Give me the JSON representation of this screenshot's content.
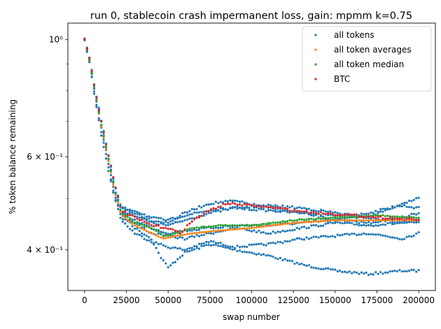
{
  "chart_data": {
    "type": "scatter",
    "title": "run 0, stablecoin crash impermanent loss, gain: mpmm k=0.75",
    "xlabel": "swap number",
    "ylabel": "% token balance remaining",
    "xlim": [
      -10000,
      210000
    ],
    "ylim": [
      0.335,
      1.075
    ],
    "yscale": "log",
    "xticks": [
      0,
      25000,
      50000,
      75000,
      100000,
      125000,
      150000,
      175000,
      200000
    ],
    "xtick_labels": [
      "0",
      "25000",
      "50000",
      "75000",
      "100000",
      "125000",
      "150000",
      "175000",
      "200000"
    ],
    "yticks_major": [
      0.4,
      0.6,
      1.0
    ],
    "ytick_labels": [
      "4 × 10⁻¹",
      "6 × 10⁻¹",
      "10⁰"
    ],
    "yticks_minor": [
      0.5,
      0.7,
      0.8,
      0.9
    ],
    "legend_position": "top-right",
    "legend": [
      "all tokens",
      "all token averages",
      "all token median",
      "BTC"
    ],
    "colors": {
      "all tokens": "#1f77b4",
      "all token averages": "#ff7f0e",
      "all token median": "#2ca02c",
      "BTC": "#d62728"
    },
    "series": [
      {
        "name": "all tokens",
        "group": "all tokens",
        "x": [
          0,
          3000,
          6000,
          10000,
          14000,
          18000,
          22000,
          30000,
          40000,
          45000,
          50000,
          60000,
          75000,
          90000,
          110000,
          130000,
          150000,
          170000,
          190000,
          200000
        ],
        "y": [
          1.0,
          0.9,
          0.78,
          0.66,
          0.57,
          0.5,
          0.47,
          0.44,
          0.42,
          0.39,
          0.37,
          0.395,
          0.41,
          0.4,
          0.39,
          0.375,
          0.365,
          0.36,
          0.365,
          0.365
        ]
      },
      {
        "name": "all tokens",
        "group": "all tokens",
        "x": [
          0,
          3000,
          6000,
          10000,
          14000,
          18000,
          22000,
          30000,
          40000,
          50000,
          60000,
          75000,
          90000,
          110000,
          130000,
          150000,
          170000,
          190000,
          200000
        ],
        "y": [
          1.0,
          0.9,
          0.79,
          0.67,
          0.58,
          0.5,
          0.455,
          0.43,
          0.415,
          0.405,
          0.4,
          0.415,
          0.405,
          0.41,
          0.42,
          0.425,
          0.43,
          0.42,
          0.43
        ]
      },
      {
        "name": "all tokens",
        "group": "all tokens",
        "x": [
          0,
          3000,
          6000,
          10000,
          14000,
          18000,
          22000,
          30000,
          40000,
          50000,
          60000,
          75000,
          90000,
          110000,
          130000,
          150000,
          170000,
          190000,
          200000
        ],
        "y": [
          1.0,
          0.91,
          0.8,
          0.68,
          0.59,
          0.51,
          0.46,
          0.45,
          0.43,
          0.425,
          0.42,
          0.43,
          0.44,
          0.43,
          0.44,
          0.45,
          0.445,
          0.45,
          0.45
        ]
      },
      {
        "name": "all tokens",
        "group": "all tokens",
        "x": [
          0,
          3000,
          6000,
          10000,
          14000,
          18000,
          22000,
          30000,
          40000,
          50000,
          60000,
          75000,
          90000,
          110000,
          130000,
          150000,
          170000,
          190000,
          200000
        ],
        "y": [
          1.0,
          0.91,
          0.8,
          0.69,
          0.6,
          0.52,
          0.47,
          0.455,
          0.44,
          0.43,
          0.435,
          0.44,
          0.445,
          0.445,
          0.45,
          0.455,
          0.47,
          0.485,
          0.48
        ]
      },
      {
        "name": "all tokens",
        "group": "all tokens",
        "x": [
          0,
          3000,
          6000,
          10000,
          14000,
          18000,
          22000,
          30000,
          40000,
          50000,
          60000,
          75000,
          90000,
          110000,
          130000,
          150000,
          170000,
          190000,
          200000
        ],
        "y": [
          1.0,
          0.91,
          0.81,
          0.69,
          0.6,
          0.52,
          0.475,
          0.465,
          0.45,
          0.445,
          0.455,
          0.47,
          0.48,
          0.475,
          0.47,
          0.465,
          0.46,
          0.49,
          0.5
        ]
      },
      {
        "name": "all tokens",
        "group": "all tokens",
        "x": [
          0,
          3000,
          6000,
          10000,
          14000,
          18000,
          22000,
          30000,
          40000,
          50000,
          60000,
          75000,
          90000,
          110000,
          130000,
          150000,
          170000,
          190000,
          200000
        ],
        "y": [
          1.0,
          0.92,
          0.81,
          0.7,
          0.61,
          0.53,
          0.48,
          0.47,
          0.455,
          0.45,
          0.47,
          0.49,
          0.495,
          0.48,
          0.47,
          0.455,
          0.45,
          0.46,
          0.47
        ]
      },
      {
        "name": "all tokens",
        "group": "all tokens",
        "x": [
          0,
          3000,
          6000,
          10000,
          14000,
          18000,
          22000,
          30000,
          40000,
          50000,
          60000,
          75000,
          90000,
          110000,
          130000,
          150000,
          170000,
          190000,
          200000
        ],
        "y": [
          1.0,
          0.92,
          0.81,
          0.7,
          0.61,
          0.53,
          0.48,
          0.475,
          0.46,
          0.455,
          0.465,
          0.475,
          0.48,
          0.485,
          0.48,
          0.47,
          0.46,
          0.45,
          0.455
        ]
      },
      {
        "name": "all token averages",
        "group": "all token averages",
        "x": [
          0,
          3000,
          6000,
          10000,
          14000,
          18000,
          22000,
          30000,
          40000,
          47000,
          55000,
          65000,
          80000,
          100000,
          125000,
          150000,
          175000,
          200000
        ],
        "y": [
          1.0,
          0.91,
          0.8,
          0.685,
          0.595,
          0.515,
          0.465,
          0.445,
          0.43,
          0.42,
          0.425,
          0.43,
          0.435,
          0.44,
          0.45,
          0.455,
          0.455,
          0.455
        ]
      },
      {
        "name": "all token median",
        "group": "all token median",
        "x": [
          0,
          3000,
          6000,
          10000,
          14000,
          18000,
          22000,
          30000,
          40000,
          48000,
          55000,
          65000,
          80000,
          100000,
          125000,
          150000,
          175000,
          200000
        ],
        "y": [
          1.0,
          0.91,
          0.8,
          0.69,
          0.6,
          0.52,
          0.47,
          0.45,
          0.44,
          0.425,
          0.43,
          0.44,
          0.445,
          0.445,
          0.455,
          0.46,
          0.465,
          0.46
        ]
      },
      {
        "name": "BTC",
        "group": "BTC",
        "x": [
          0,
          3000,
          6000,
          10000,
          14000,
          18000,
          22000,
          30000,
          40000,
          50000,
          57000,
          65000,
          75000,
          85000,
          100000,
          115000,
          125000,
          140000,
          160000,
          180000,
          200000
        ],
        "y": [
          1.0,
          0.92,
          0.81,
          0.7,
          0.61,
          0.53,
          0.475,
          0.46,
          0.445,
          0.44,
          0.43,
          0.455,
          0.475,
          0.49,
          0.485,
          0.48,
          0.475,
          0.47,
          0.465,
          0.46,
          0.455
        ]
      }
    ]
  }
}
